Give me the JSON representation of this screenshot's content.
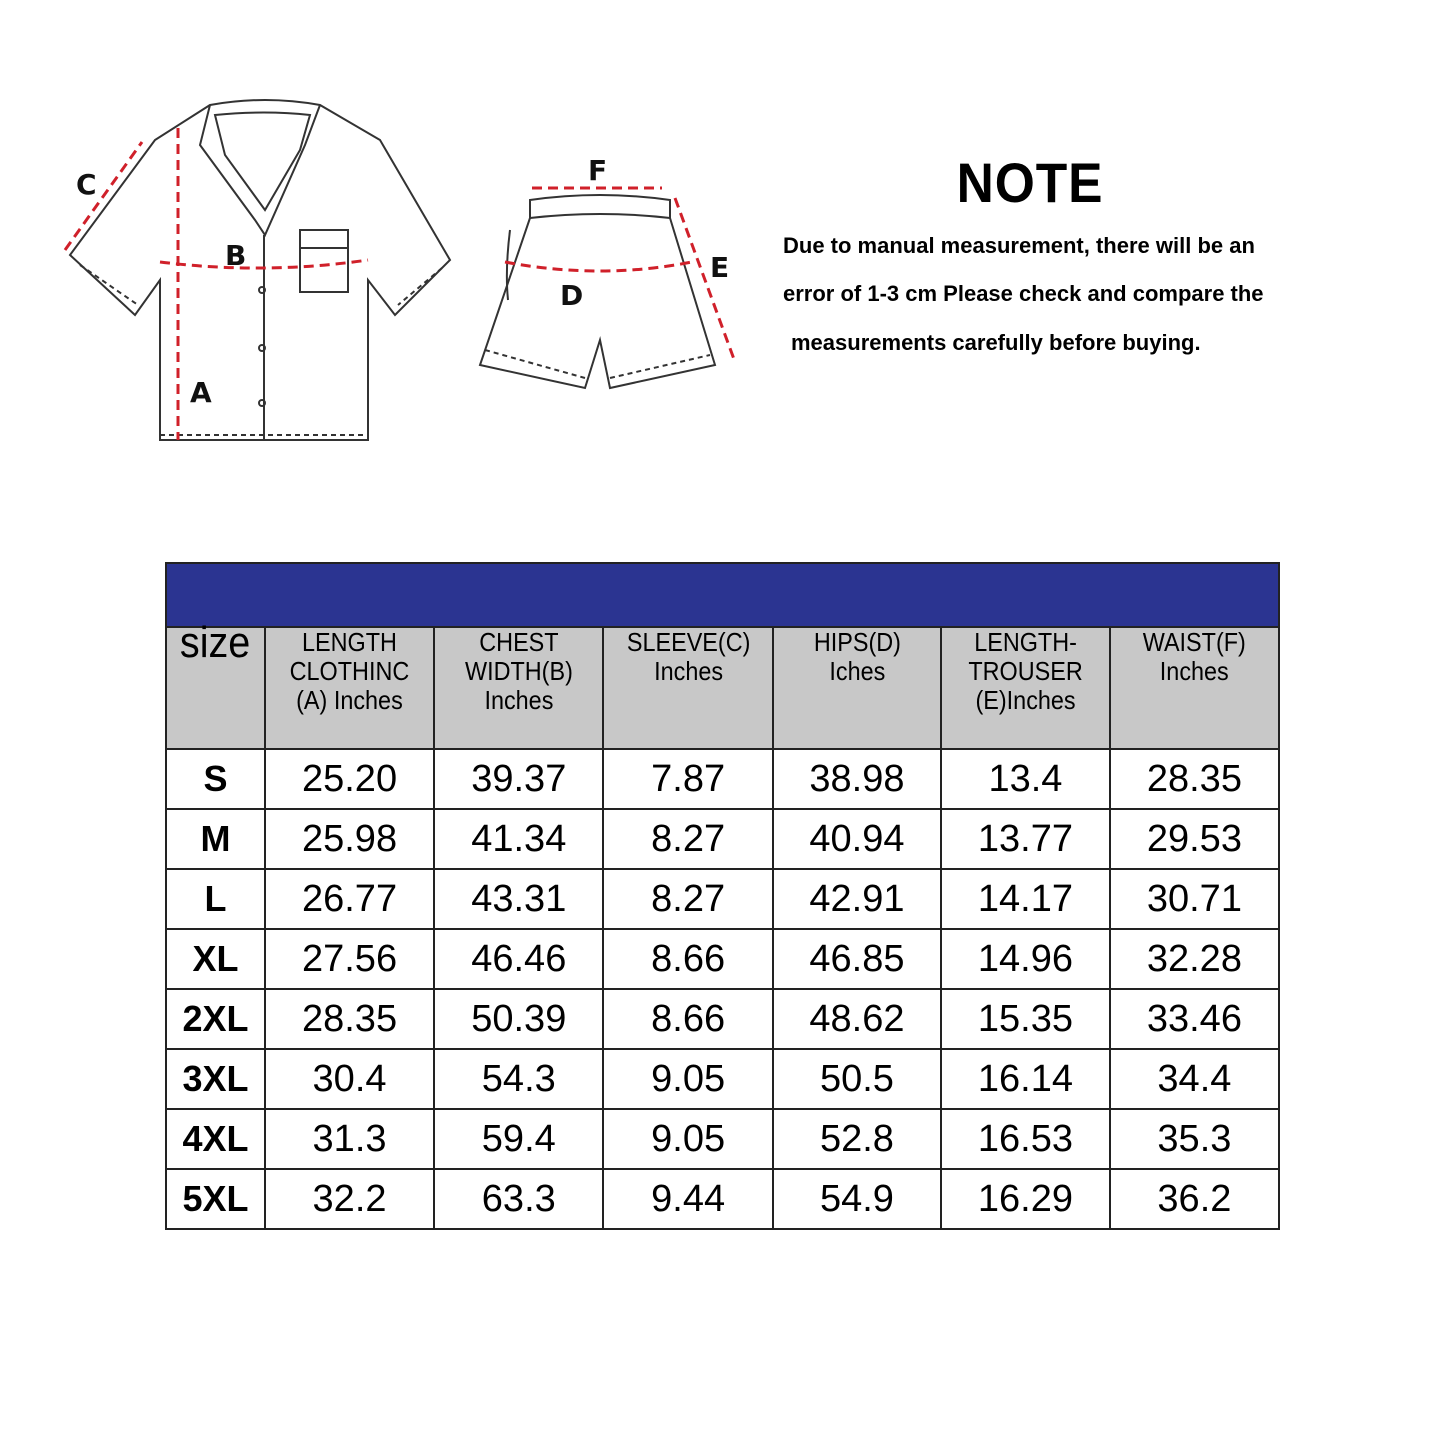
{
  "diagram": {
    "shirt_labels": {
      "a": "A",
      "b": "B",
      "c": "C"
    },
    "shorts_labels": {
      "d": "D",
      "e": "E",
      "f": "F"
    },
    "measure_color": "#d0202a"
  },
  "note": {
    "title": "NOTE",
    "lines": [
      "Due to manual measurement, there will be an",
      "error of 1-3 cm Please check and compare the",
      "measurements carefully before buying."
    ]
  },
  "table": {
    "header_bar_color": "#2b3491",
    "header_bg": "#c8c8c8",
    "columns": [
      [
        "size"
      ],
      [
        "LENGTH",
        "CLOTHINC",
        "(A) Inches"
      ],
      [
        "CHEST",
        "WIDTH(B)",
        "Inches"
      ],
      [
        "SLEEVE(C)",
        "Inches"
      ],
      [
        "HIPS(D)",
        "Iches"
      ],
      [
        "LENGTH-",
        "TROUSER",
        "(E)Inches"
      ],
      [
        "WAIST(F)",
        "Inches"
      ]
    ],
    "rows": [
      [
        "S",
        "25.20",
        "39.37",
        "7.87",
        "38.98",
        "13.4",
        "28.35"
      ],
      [
        "M",
        "25.98",
        "41.34",
        "8.27",
        "40.94",
        "13.77",
        "29.53"
      ],
      [
        "L",
        "26.77",
        "43.31",
        "8.27",
        "42.91",
        "14.17",
        "30.71"
      ],
      [
        "XL",
        "27.56",
        "46.46",
        "8.66",
        "46.85",
        "14.96",
        "32.28"
      ],
      [
        "2XL",
        "28.35",
        "50.39",
        "8.66",
        "48.62",
        "15.35",
        "33.46"
      ],
      [
        "3XL",
        "30.4",
        "54.3",
        "9.05",
        "50.5",
        "16.14",
        "34.4"
      ],
      [
        "4XL",
        "31.3",
        "59.4",
        "9.05",
        "52.8",
        "16.53",
        "35.3"
      ],
      [
        "5XL",
        "32.2",
        "63.3",
        "9.44",
        "54.9",
        "16.29",
        "36.2"
      ]
    ]
  }
}
